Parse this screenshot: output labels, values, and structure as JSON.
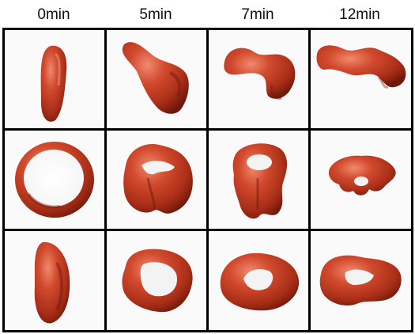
{
  "columns": [
    {
      "label": "0min"
    },
    {
      "label": "5min"
    },
    {
      "label": "7min"
    },
    {
      "label": "12min"
    }
  ],
  "rows": [
    {
      "view": "side"
    },
    {
      "view": "front"
    },
    {
      "view": "oblique"
    }
  ],
  "colors": {
    "cell_fill": "#c8432a",
    "cell_shade": "#7a1a0e",
    "cell_highlight": "#f08a6e",
    "grid_line": "#000000",
    "panel_bg": "#fafafa"
  }
}
